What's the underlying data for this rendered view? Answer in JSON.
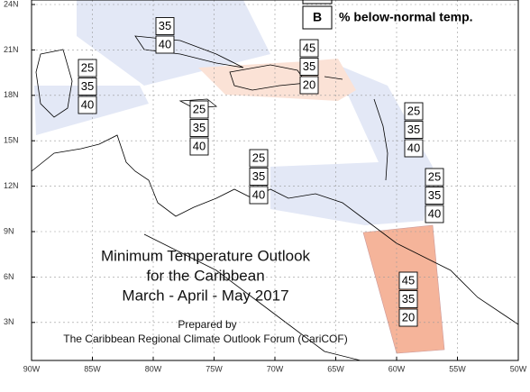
{
  "y_axis_labels": [
    "24N",
    "21N",
    "18N",
    "15N",
    "12N",
    "9N",
    "6N",
    "3N"
  ],
  "x_axis_labels": [
    "90W",
    "85W",
    "80W",
    "75W",
    "70W",
    "65W",
    "60W",
    "55W",
    "50W"
  ],
  "legend": {
    "symbol": "B",
    "text": "% below-normal temp."
  },
  "title_lines": [
    "Minimum Temperature Outlook",
    "for the Caribbean",
    "March - April - May 2017"
  ],
  "credit_lines": [
    "Prepared by",
    "The Caribbean Regional Climate Outlook Forum (CariCOF)"
  ],
  "regions": [
    {
      "values": [
        35,
        40
      ]
    },
    {
      "values": [
        25,
        35,
        40
      ]
    },
    {
      "values": [
        25,
        35,
        40
      ]
    },
    {
      "values": [
        45,
        35,
        20
      ]
    },
    {
      "values": [
        25,
        35,
        40
      ]
    },
    {
      "values": [
        25,
        35,
        40
      ]
    },
    {
      "values": [
        25,
        35,
        40
      ]
    },
    {
      "values": [
        45,
        35,
        20
      ]
    }
  ]
}
